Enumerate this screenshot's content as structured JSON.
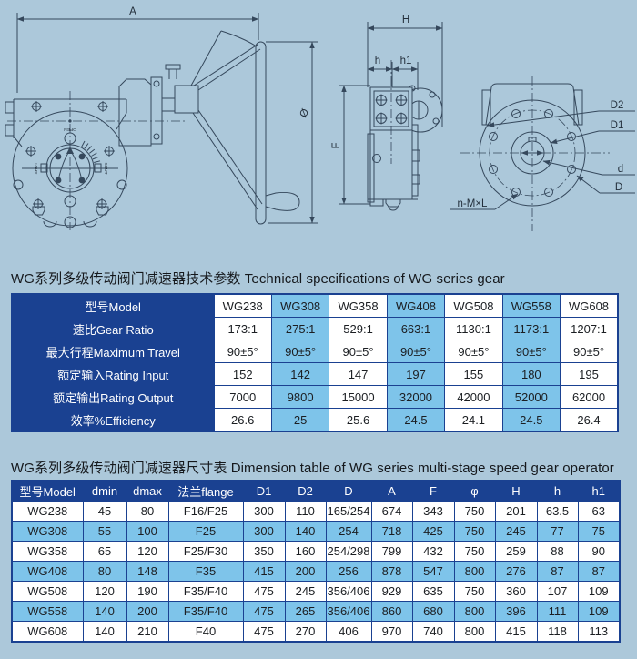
{
  "colors": {
    "background": "#acc8da",
    "table_navy": "#1a4191",
    "cell_blue": "#7ec4ea",
    "cell_white": "#ffffff",
    "drawing_line": "#35485c",
    "header_text": "#ffffff",
    "body_text": "#1b1e22"
  },
  "drawings": {
    "labels": {
      "a": "A",
      "phi": "Ø",
      "H": "H",
      "h": "h",
      "h1": "h1",
      "F": "F",
      "D2": "D2",
      "D1": "D1",
      "d": "d",
      "D": "D",
      "bolt_note": "n-M×L",
      "open": "OPEN",
      "shut": "SHUT"
    }
  },
  "spec_table": {
    "title": "WG系列多级传动阀门减速器技术参数 Technical specifications of WG series gear",
    "header_label": "型号Model",
    "models": [
      "WG238",
      "WG308",
      "WG358",
      "WG408",
      "WG508",
      "WG558",
      "WG608"
    ],
    "rows": [
      {
        "label": "速比Gear Ratio",
        "values": [
          "173:1",
          "275:1",
          "529:1",
          "663:1",
          "1130:1",
          "1173:1",
          "1207:1"
        ]
      },
      {
        "label": "最大行程Maximum Travel",
        "values": [
          "90±5°",
          "90±5°",
          "90±5°",
          "90±5°",
          "90±5°",
          "90±5°",
          "90±5°"
        ]
      },
      {
        "label": "额定输入Rating Input",
        "values": [
          "152",
          "142",
          "147",
          "197",
          "155",
          "180",
          "195"
        ]
      },
      {
        "label": "额定输出Rating Output",
        "values": [
          "7000",
          "9800",
          "15000",
          "32000",
          "42000",
          "52000",
          "62000"
        ]
      },
      {
        "label": "效率%Efficiency",
        "values": [
          "26.6",
          "25",
          "25.6",
          "24.5",
          "24.1",
          "24.5",
          "26.4"
        ]
      }
    ]
  },
  "dim_table": {
    "title": "WG系列多级传动阀门减速器尺寸表 Dimension table of WG series multi-stage speed gear operator",
    "headers": [
      "型号Model",
      "dmin",
      "dmax",
      "法兰flange",
      "D1",
      "D2",
      "D",
      "A",
      "F",
      "φ",
      "H",
      "h",
      "h1"
    ],
    "rows": [
      [
        "WG238",
        "45",
        "80",
        "F16/F25",
        "300",
        "110",
        "165/254",
        "674",
        "343",
        "750",
        "201",
        "63.5",
        "63"
      ],
      [
        "WG308",
        "55",
        "100",
        "F25",
        "300",
        "140",
        "254",
        "718",
        "425",
        "750",
        "245",
        "77",
        "75"
      ],
      [
        "WG358",
        "65",
        "120",
        "F25/F30",
        "350",
        "160",
        "254/298",
        "799",
        "432",
        "750",
        "259",
        "88",
        "90"
      ],
      [
        "WG408",
        "80",
        "148",
        "F35",
        "415",
        "200",
        "256",
        "878",
        "547",
        "800",
        "276",
        "87",
        "87"
      ],
      [
        "WG508",
        "120",
        "190",
        "F35/F40",
        "475",
        "245",
        "356/406",
        "929",
        "635",
        "750",
        "360",
        "107",
        "109"
      ],
      [
        "WG558",
        "140",
        "200",
        "F35/F40",
        "475",
        "265",
        "356/406",
        "860",
        "680",
        "800",
        "396",
        "111",
        "109"
      ],
      [
        "WG608",
        "140",
        "210",
        "F40",
        "475",
        "270",
        "406",
        "970",
        "740",
        "800",
        "415",
        "118",
        "113"
      ]
    ]
  }
}
